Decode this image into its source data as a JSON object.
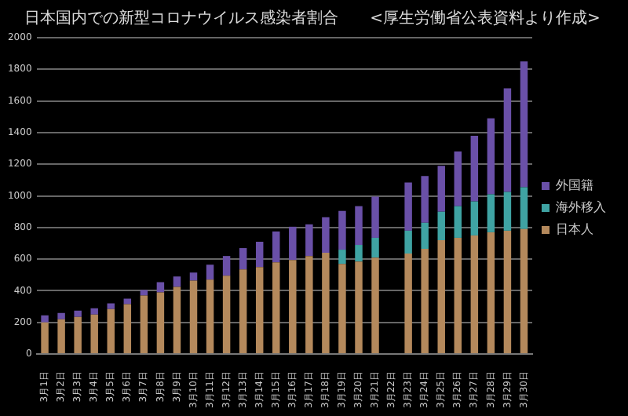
{
  "chart_data": {
    "type": "bar",
    "title": "日本国内での新型コロナウイルス感染者割合　　<厚生労働省公表資料より作成>",
    "stacked": true,
    "legend": "right",
    "grid": "y",
    "categories": [
      "3月1日",
      "3月2日",
      "3月3日",
      "3月4日",
      "3月5日",
      "3月6日",
      "3月7日",
      "3月8日",
      "3月9日",
      "3月10日",
      "3月11日",
      "3月12日",
      "3月13日",
      "3月14日",
      "3月15日",
      "3月16日",
      "3月17日",
      "3月18日",
      "3月19日",
      "3月20日",
      "3月21日",
      "3月22日",
      "3月23日",
      "3月24日",
      "3月25日",
      "3月26日",
      "3月27日",
      "3月28日",
      "3月29日",
      "3月30日"
    ],
    "ylim": [
      0,
      2000
    ],
    "yticks": [
      0,
      200,
      400,
      600,
      800,
      1000,
      1200,
      1400,
      1600,
      1800,
      2000
    ],
    "series": [
      {
        "name": "日本人",
        "color": "#b4895c",
        "values": [
          200,
          220,
          235,
          250,
          285,
          315,
          370,
          390,
          425,
          465,
          470,
          495,
          535,
          550,
          580,
          595,
          620,
          640,
          570,
          585,
          610,
          null,
          635,
          665,
          720,
          735,
          750,
          770,
          780,
          790
        ]
      },
      {
        "name": "海外移入",
        "color": "#3fa3a3",
        "values": [
          0,
          0,
          0,
          0,
          0,
          0,
          0,
          0,
          0,
          0,
          0,
          0,
          0,
          0,
          0,
          0,
          0,
          0,
          90,
          105,
          125,
          null,
          145,
          165,
          180,
          200,
          215,
          240,
          245,
          265
        ]
      },
      {
        "name": "外国籍",
        "color": "#6a50a8",
        "values": [
          45,
          40,
          40,
          40,
          35,
          35,
          35,
          65,
          65,
          50,
          95,
          125,
          135,
          160,
          195,
          210,
          200,
          225,
          245,
          245,
          260,
          null,
          305,
          295,
          290,
          345,
          415,
          480,
          655,
          795
        ]
      }
    ]
  }
}
